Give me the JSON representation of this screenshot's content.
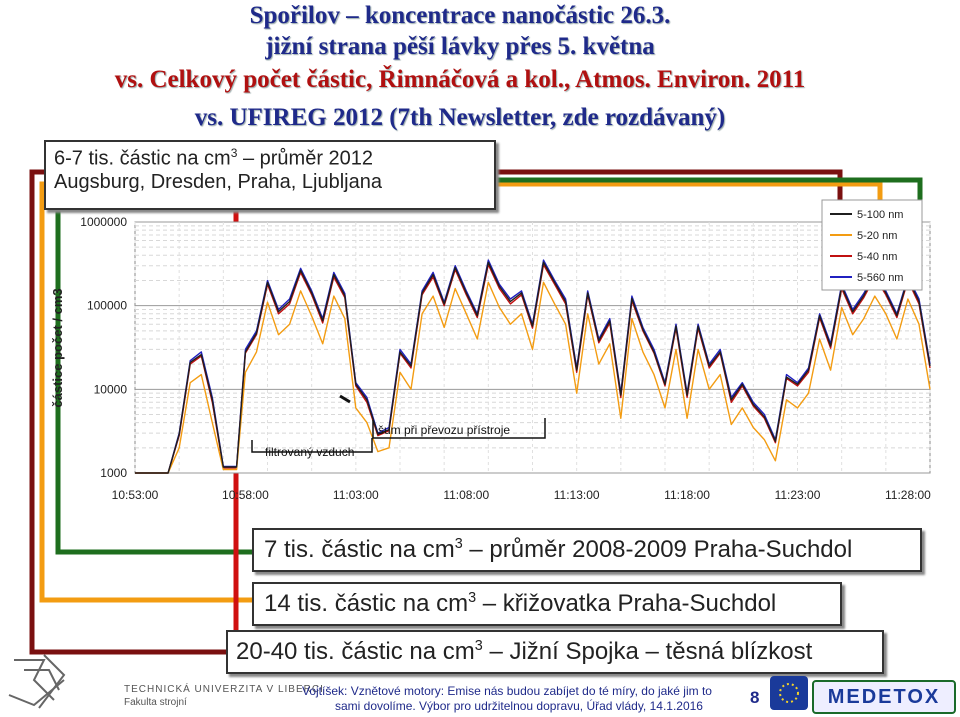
{
  "header": {
    "line1": "Spořilov – koncentrace nanočástic 26.3.",
    "line2": "jižní strana pěší lávky přes 5. května",
    "line3": "vs. Celkový počet částic, Řimnáčová a kol., Atmos. Environ. 2011",
    "line4": "vs. UFIREG 2012 (7th Newsletter, zde rozdávaný)"
  },
  "boxes": {
    "top_line1_pre": "6-7 tis. částic na cm",
    "top_line1_post": " – průměr 2012",
    "top_line2": "Augsburg, Dresden, Praha, Ljubljana",
    "b1_pre": "7 tis. částic na cm",
    "b1_post": " – průměr 2008-2009 Praha-Suchdol",
    "b2_pre": "14 tis. částic na cm",
    "b2_post": " – křižovatka Praha-Suchdol",
    "b3_pre": "20-40 tis. částic na cm",
    "b3_post": " – Jižní Spojka – těsná blízkost",
    "sup": "3"
  },
  "annotations": {
    "filtered": "filtrovaný vzduch",
    "noise": "šum při převozu přístroje"
  },
  "footer": {
    "university": "TECHNICKÁ UNIVERZITA V LIBERCI",
    "faculty": "Fakulta strojní",
    "citation1": "Vojtíšek: Vznětové motory: Emise nás budou zabíjet do té míry, do jaké jim to",
    "citation2": "sami dovolíme. Výbor pro udržitelnou dopravu, Úřad vlády, 14.1.2016",
    "page": "8",
    "brand": "MEDETOX"
  },
  "colors": {
    "s5_100": "#1f1f1f",
    "s5_20": "#f39c12",
    "s5_40": "#c01010",
    "s5_560": "#2020c0",
    "box_red": "#d01010",
    "box_orange": "#f39c12",
    "box_green": "#1e6e1e",
    "box_darkred": "#7a1010",
    "title_blue": "#1f2a8a"
  },
  "chart_data": {
    "type": "line",
    "ylabel": "částice počet / cm3",
    "yscale": "log",
    "ylim": [
      1000,
      1000000
    ],
    "yticks": [
      "1000",
      "10000",
      "100000",
      "1000000"
    ],
    "xticks": [
      "10:53:00",
      "10:58:00",
      "11:03:00",
      "11:08:00",
      "11:13:00",
      "11:18:00",
      "11:23:00",
      "11:28:00"
    ],
    "xlim": [
      0,
      36
    ],
    "legend": [
      "5-100 nm",
      "5-20 nm",
      "5-40 nm",
      "5-560 nm"
    ],
    "legend_position": "top-right",
    "grid": true,
    "series": [
      {
        "name": "5-560 nm",
        "values": [
          [
            0,
            1000
          ],
          [
            1.5,
            1000
          ],
          [
            2,
            3000
          ],
          [
            2.5,
            22000
          ],
          [
            3,
            28000
          ],
          [
            3.5,
            8000
          ],
          [
            4,
            1200
          ],
          [
            4.6,
            1200
          ],
          [
            5,
            30000
          ],
          [
            5.5,
            50000
          ],
          [
            6,
            200000
          ],
          [
            6.5,
            90000
          ],
          [
            7,
            120000
          ],
          [
            7.5,
            280000
          ],
          [
            8,
            150000
          ],
          [
            8.5,
            70000
          ],
          [
            9,
            250000
          ],
          [
            9.5,
            140000
          ],
          [
            10,
            12000
          ],
          [
            10.5,
            8000
          ],
          [
            11,
            3000
          ],
          [
            11.5,
            3500
          ],
          [
            12,
            30000
          ],
          [
            12.5,
            20000
          ],
          [
            13,
            150000
          ],
          [
            13.5,
            250000
          ],
          [
            14,
            110000
          ],
          [
            14.5,
            300000
          ],
          [
            15,
            150000
          ],
          [
            15.5,
            80000
          ],
          [
            16,
            350000
          ],
          [
            16.5,
            180000
          ],
          [
            17,
            120000
          ],
          [
            17.5,
            150000
          ],
          [
            18,
            60000
          ],
          [
            18.5,
            350000
          ],
          [
            19,
            200000
          ],
          [
            19.5,
            120000
          ],
          [
            20,
            18000
          ],
          [
            20.5,
            150000
          ],
          [
            21,
            40000
          ],
          [
            21.5,
            70000
          ],
          [
            22,
            9000
          ],
          [
            22.5,
            130000
          ],
          [
            23,
            55000
          ],
          [
            23.5,
            30000
          ],
          [
            24,
            12000
          ],
          [
            24.5,
            60000
          ],
          [
            25,
            9000
          ],
          [
            25.5,
            60000
          ],
          [
            26,
            20000
          ],
          [
            26.5,
            30000
          ],
          [
            27,
            8000
          ],
          [
            27.5,
            12000
          ],
          [
            28,
            7000
          ],
          [
            28.5,
            5000
          ],
          [
            29,
            2500
          ],
          [
            29.5,
            15000
          ],
          [
            30,
            12000
          ],
          [
            30.5,
            18000
          ],
          [
            31,
            80000
          ],
          [
            31.5,
            35000
          ],
          [
            32,
            180000
          ],
          [
            32.5,
            90000
          ],
          [
            33,
            140000
          ],
          [
            33.5,
            250000
          ],
          [
            34,
            150000
          ],
          [
            34.5,
            80000
          ],
          [
            35,
            220000
          ],
          [
            35.5,
            120000
          ],
          [
            36,
            20000
          ]
        ]
      },
      {
        "name": "5-40 nm",
        "values": [
          [
            0,
            1000
          ],
          [
            1.5,
            1000
          ],
          [
            2,
            2800
          ],
          [
            2.5,
            20000
          ],
          [
            3,
            25000
          ],
          [
            3.5,
            7000
          ],
          [
            4,
            1150
          ],
          [
            4.6,
            1150
          ],
          [
            5,
            27000
          ],
          [
            5.5,
            45000
          ],
          [
            6,
            180000
          ],
          [
            6.5,
            80000
          ],
          [
            7,
            105000
          ],
          [
            7.5,
            250000
          ],
          [
            8,
            135000
          ],
          [
            8.5,
            62000
          ],
          [
            9,
            220000
          ],
          [
            9.5,
            125000
          ],
          [
            10,
            11000
          ],
          [
            10.5,
            7000
          ],
          [
            11,
            2800
          ],
          [
            11.5,
            3200
          ],
          [
            12,
            27000
          ],
          [
            12.5,
            18000
          ],
          [
            13,
            135000
          ],
          [
            13.5,
            220000
          ],
          [
            14,
            100000
          ],
          [
            14.5,
            270000
          ],
          [
            15,
            135000
          ],
          [
            15.5,
            72000
          ],
          [
            16,
            310000
          ],
          [
            16.5,
            160000
          ],
          [
            17,
            105000
          ],
          [
            17.5,
            135000
          ],
          [
            18,
            54000
          ],
          [
            18.5,
            310000
          ],
          [
            19,
            180000
          ],
          [
            19.5,
            105000
          ],
          [
            20,
            16000
          ],
          [
            20.5,
            135000
          ],
          [
            21,
            36000
          ],
          [
            21.5,
            62000
          ],
          [
            22,
            8000
          ],
          [
            22.5,
            115000
          ],
          [
            23,
            50000
          ],
          [
            23.5,
            27000
          ],
          [
            24,
            11000
          ],
          [
            24.5,
            54000
          ],
          [
            25,
            8000
          ],
          [
            25.5,
            54000
          ],
          [
            26,
            18000
          ],
          [
            26.5,
            27000
          ],
          [
            27,
            7000
          ],
          [
            27.5,
            11000
          ],
          [
            28,
            6300
          ],
          [
            28.5,
            4500
          ],
          [
            29,
            2300
          ],
          [
            29.5,
            13500
          ],
          [
            30,
            11000
          ],
          [
            30.5,
            16000
          ],
          [
            31,
            72000
          ],
          [
            31.5,
            31000
          ],
          [
            32,
            160000
          ],
          [
            32.5,
            80000
          ],
          [
            33,
            125000
          ],
          [
            33.5,
            220000
          ],
          [
            34,
            135000
          ],
          [
            34.5,
            72000
          ],
          [
            35,
            200000
          ],
          [
            35.5,
            105000
          ],
          [
            36,
            18000
          ]
        ]
      },
      {
        "name": "5-20 nm",
        "values": [
          [
            0,
            1000
          ],
          [
            1.5,
            1000
          ],
          [
            2,
            2000
          ],
          [
            2.5,
            12000
          ],
          [
            3,
            15000
          ],
          [
            3.5,
            4000
          ],
          [
            4,
            1100
          ],
          [
            4.6,
            1100
          ],
          [
            5,
            16000
          ],
          [
            5.5,
            28000
          ],
          [
            6,
            110000
          ],
          [
            6.5,
            45000
          ],
          [
            7,
            60000
          ],
          [
            7.5,
            150000
          ],
          [
            8,
            75000
          ],
          [
            8.5,
            35000
          ],
          [
            9,
            130000
          ],
          [
            9.5,
            70000
          ],
          [
            10,
            6000
          ],
          [
            10.5,
            4000
          ],
          [
            11,
            1800
          ],
          [
            11.5,
            2000
          ],
          [
            12,
            16000
          ],
          [
            12.5,
            10000
          ],
          [
            13,
            80000
          ],
          [
            13.5,
            130000
          ],
          [
            14,
            55000
          ],
          [
            14.5,
            160000
          ],
          [
            15,
            80000
          ],
          [
            15.5,
            40000
          ],
          [
            16,
            190000
          ],
          [
            16.5,
            95000
          ],
          [
            17,
            60000
          ],
          [
            17.5,
            80000
          ],
          [
            18,
            30000
          ],
          [
            18.5,
            190000
          ],
          [
            19,
            105000
          ],
          [
            19.5,
            60000
          ],
          [
            20,
            9000
          ],
          [
            20.5,
            80000
          ],
          [
            21,
            20000
          ],
          [
            21.5,
            35000
          ],
          [
            22,
            4500
          ],
          [
            22.5,
            70000
          ],
          [
            23,
            28000
          ],
          [
            23.5,
            15000
          ],
          [
            24,
            6000
          ],
          [
            24.5,
            30000
          ],
          [
            25,
            4500
          ],
          [
            25.5,
            30000
          ],
          [
            26,
            10000
          ],
          [
            26.5,
            15000
          ],
          [
            27,
            3800
          ],
          [
            27.5,
            6000
          ],
          [
            28,
            3500
          ],
          [
            28.5,
            2500
          ],
          [
            29,
            1400
          ],
          [
            29.5,
            7500
          ],
          [
            30,
            6000
          ],
          [
            30.5,
            9000
          ],
          [
            31,
            40000
          ],
          [
            31.5,
            17000
          ],
          [
            32,
            95000
          ],
          [
            32.5,
            45000
          ],
          [
            33,
            70000
          ],
          [
            33.5,
            130000
          ],
          [
            34,
            80000
          ],
          [
            34.5,
            40000
          ],
          [
            35,
            120000
          ],
          [
            35.5,
            60000
          ],
          [
            36,
            10000
          ]
        ]
      },
      {
        "name": "5-100 nm",
        "values": [
          [
            0,
            1000
          ],
          [
            1.5,
            1000
          ],
          [
            2,
            2900
          ],
          [
            2.5,
            21000
          ],
          [
            3,
            26000
          ],
          [
            3.5,
            7500
          ],
          [
            4,
            1180
          ],
          [
            4.6,
            1180
          ],
          [
            5,
            28000
          ],
          [
            5.5,
            47000
          ],
          [
            6,
            190000
          ],
          [
            6.5,
            85000
          ],
          [
            7,
            112000
          ],
          [
            7.5,
            265000
          ],
          [
            8,
            142000
          ],
          [
            8.5,
            66000
          ],
          [
            9,
            235000
          ],
          [
            9.5,
            132000
          ],
          [
            10,
            11500
          ],
          [
            10.5,
            7500
          ],
          [
            11,
            2900
          ],
          [
            11.5,
            3300
          ],
          [
            12,
            28000
          ],
          [
            12.5,
            19000
          ],
          [
            13,
            142000
          ],
          [
            13.5,
            235000
          ],
          [
            14,
            105000
          ],
          [
            14.5,
            285000
          ],
          [
            15,
            142000
          ],
          [
            15.5,
            76000
          ],
          [
            16,
            330000
          ],
          [
            16.5,
            170000
          ],
          [
            17,
            112000
          ],
          [
            17.5,
            142000
          ],
          [
            18,
            57000
          ],
          [
            18.5,
            330000
          ],
          [
            19,
            190000
          ],
          [
            19.5,
            112000
          ],
          [
            20,
            17000
          ],
          [
            20.5,
            142000
          ],
          [
            21,
            38000
          ],
          [
            21.5,
            66000
          ],
          [
            22,
            8500
          ],
          [
            22.5,
            122000
          ],
          [
            23,
            52000
          ],
          [
            23.5,
            28000
          ],
          [
            24,
            11500
          ],
          [
            24.5,
            57000
          ],
          [
            25,
            8500
          ],
          [
            25.5,
            57000
          ],
          [
            26,
            19000
          ],
          [
            26.5,
            28000
          ],
          [
            27,
            7500
          ],
          [
            27.5,
            11500
          ],
          [
            28,
            6600
          ],
          [
            28.5,
            4700
          ],
          [
            29,
            2400
          ],
          [
            29.5,
            14000
          ],
          [
            30,
            11500
          ],
          [
            30.5,
            17000
          ],
          [
            31,
            76000
          ],
          [
            31.5,
            33000
          ],
          [
            32,
            170000
          ],
          [
            32.5,
            85000
          ],
          [
            33,
            132000
          ],
          [
            33.5,
            235000
          ],
          [
            34,
            142000
          ],
          [
            34.5,
            76000
          ],
          [
            35,
            210000
          ],
          [
            35.5,
            112000
          ],
          [
            36,
            19000
          ]
        ]
      }
    ]
  }
}
